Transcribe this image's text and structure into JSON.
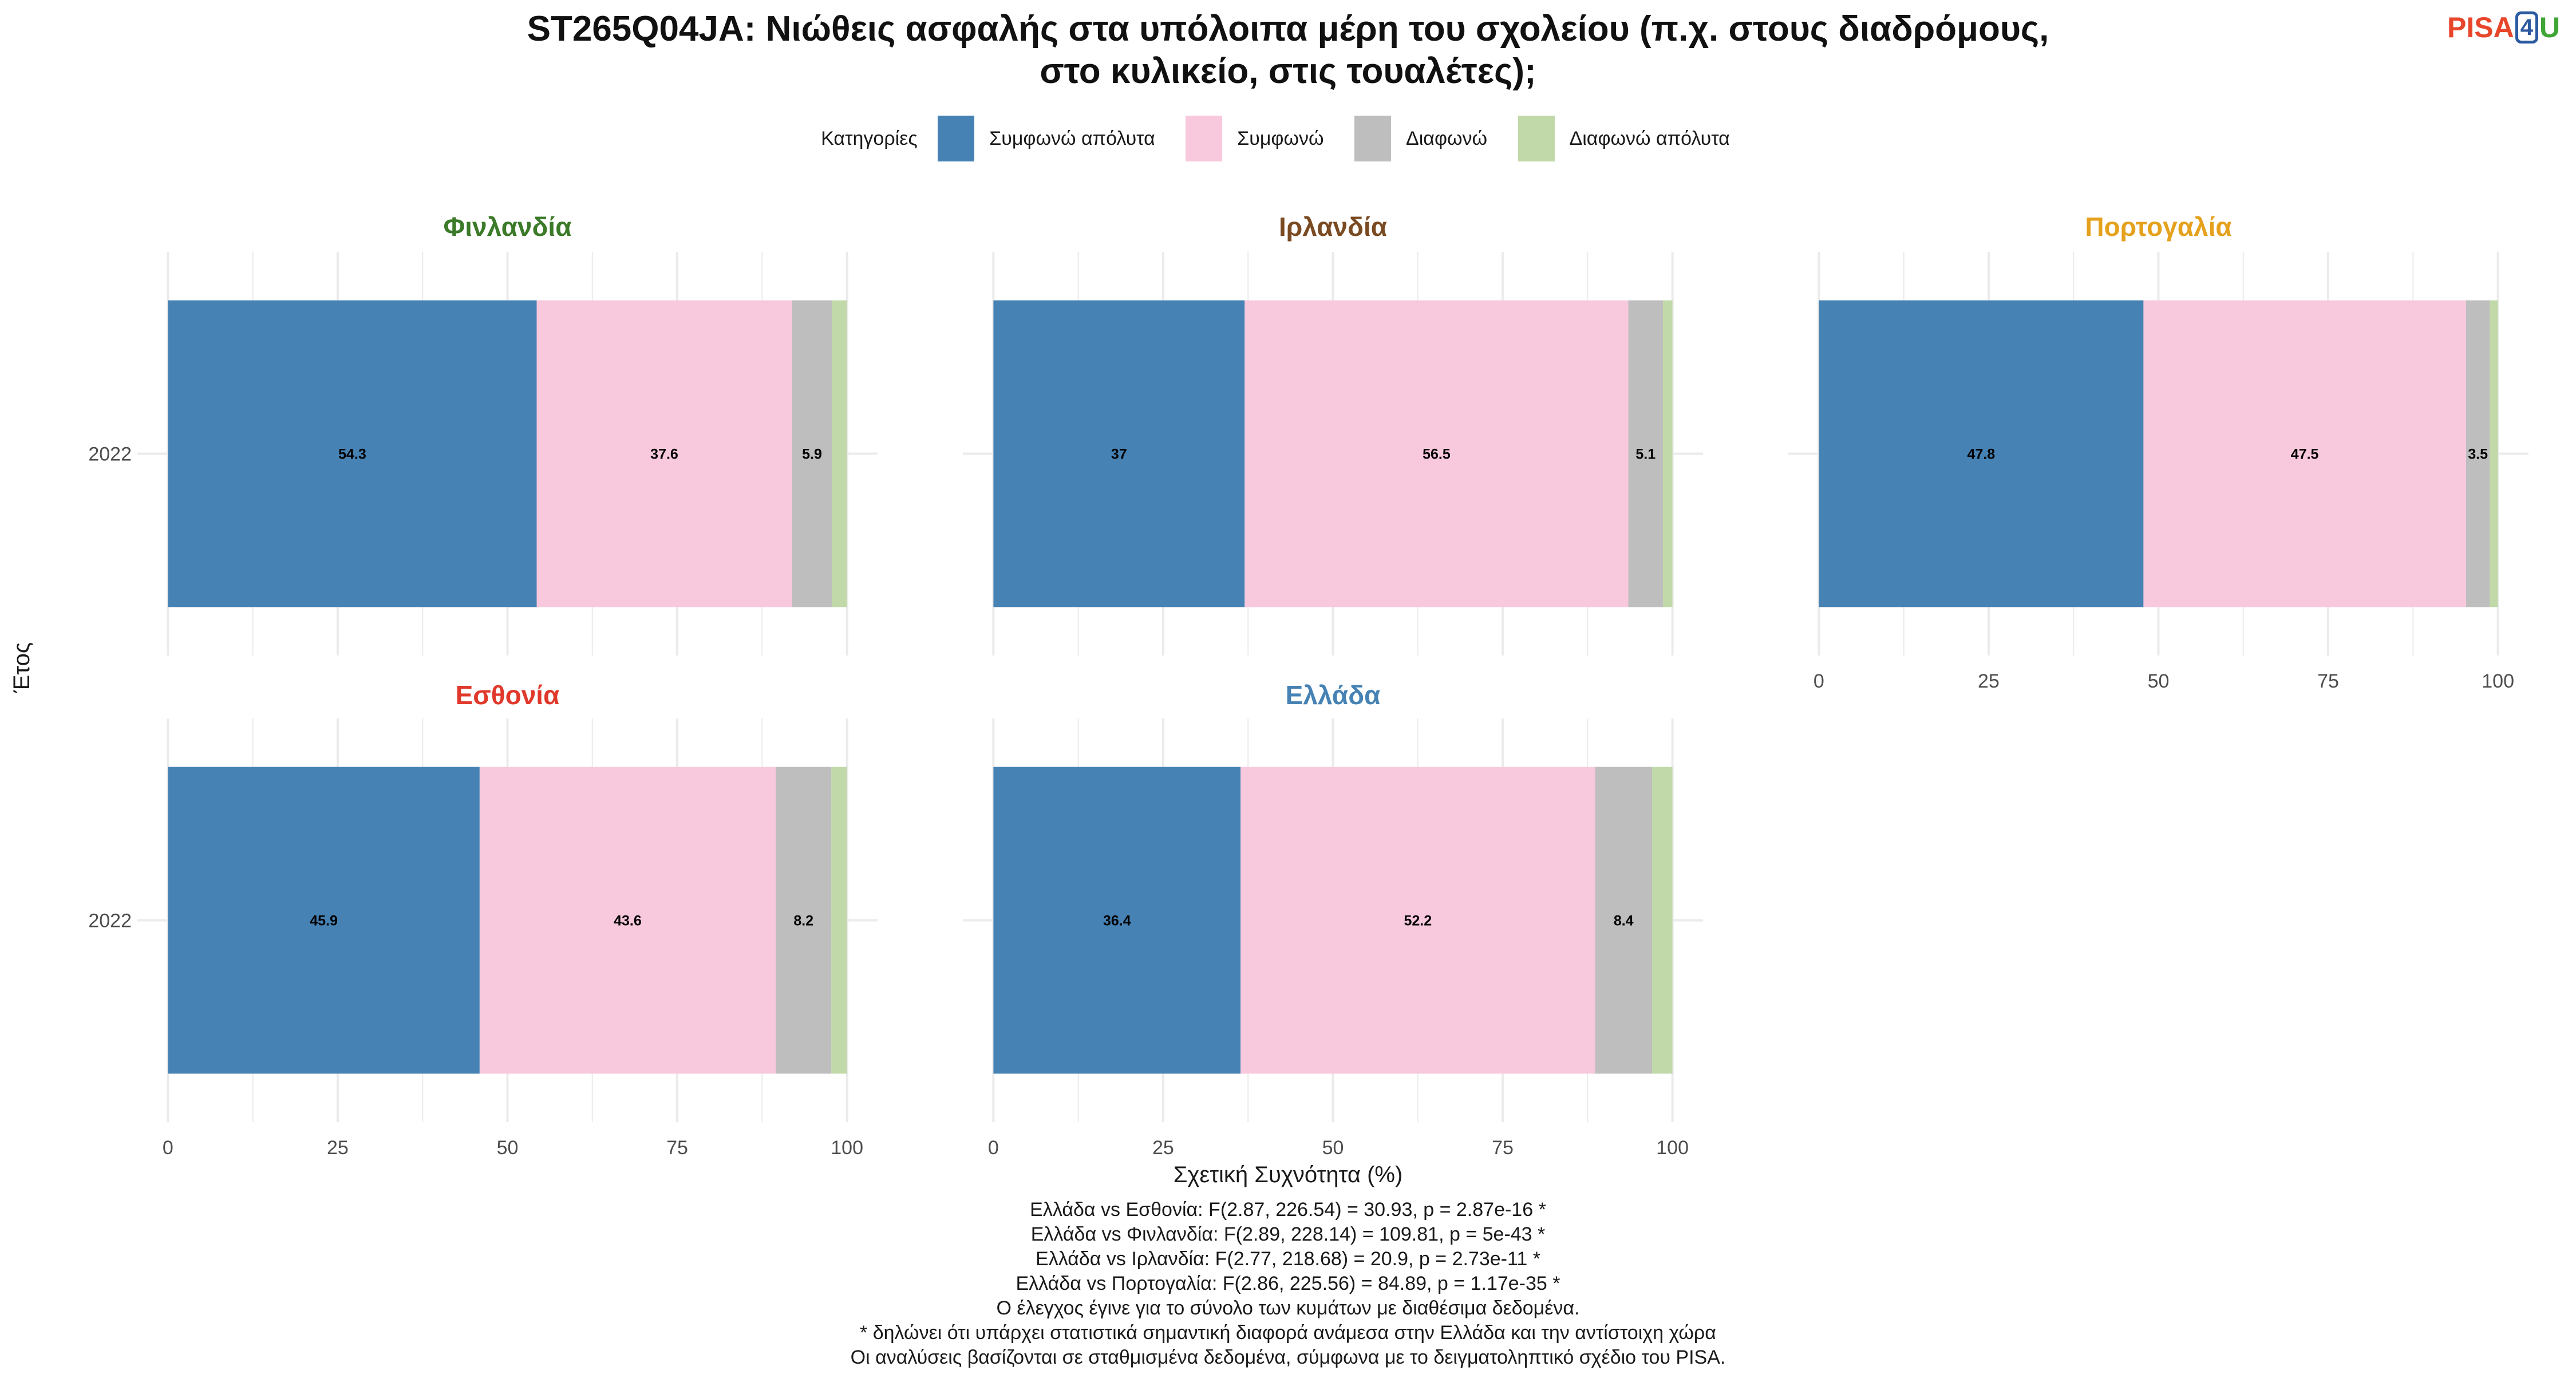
{
  "title": "ST265Q04JA: Νιώθεις ασφαλής στα υπόλοιπα μέρη του σχολείου (π.χ. στους διαδρόμους, στο κυλικείο, στις τουαλέτες);",
  "logo": {
    "part1": "PISA",
    "part2": "4",
    "part3": "U"
  },
  "legend_title": "Κατηγορίες",
  "chart_data": {
    "type": "bar",
    "orientation": "horizontal",
    "stacked": true,
    "xlabel": "Σχετική Συχνότητα (%)",
    "ylabel": "Έτος",
    "xlim": [
      0,
      100
    ],
    "x_ticks": [
      "0",
      "25",
      "50",
      "75",
      "100"
    ],
    "legend_position": "top",
    "categories": [
      {
        "name": "Συμφωνώ απόλυτα",
        "color": "#4682b4"
      },
      {
        "name": "Συμφωνώ",
        "color": "#f8c8dc"
      },
      {
        "name": "Διαφωνώ",
        "color": "#bebebe"
      },
      {
        "name": "Διαφωνώ απόλυτα",
        "color": "#c1d9a8"
      }
    ],
    "panels": [
      {
        "country": "Φινλανδία",
        "color": "#3b7a28",
        "year": "2022",
        "values": [
          54.3,
          37.6,
          5.9,
          2.2
        ],
        "labels": [
          "54.3",
          "37.6",
          "5.9",
          ""
        ]
      },
      {
        "country": "Ιρλανδία",
        "color": "#7a4a22",
        "year": "2022",
        "values": [
          37,
          56.5,
          5.1,
          1.4
        ],
        "labels": [
          "37",
          "56.5",
          "5.1",
          ""
        ]
      },
      {
        "country": "Πορτογαλία",
        "color": "#e5a11c",
        "year": "2022",
        "values": [
          47.8,
          47.5,
          3.5,
          1.2
        ],
        "labels": [
          "47.8",
          "47.5",
          "3.5",
          ""
        ]
      },
      {
        "country": "Εσθονία",
        "color": "#e0392b",
        "year": "2022",
        "values": [
          45.9,
          43.6,
          8.2,
          2.3
        ],
        "labels": [
          "45.9",
          "43.6",
          "8.2",
          ""
        ]
      },
      {
        "country": "Ελλάδα",
        "color": "#4682b4",
        "year": "2022",
        "values": [
          36.4,
          52.2,
          8.4,
          3.0
        ],
        "labels": [
          "36.4",
          "52.2",
          "8.4",
          ""
        ]
      }
    ]
  },
  "caption": [
    "Ελλάδα vs Εσθονία: F(2.87, 226.54) = 30.93, p = 2.87e-16 *",
    "Ελλάδα vs Φινλανδία: F(2.89, 228.14) = 109.81, p = 5e-43 *",
    "Ελλάδα vs Ιρλανδία: F(2.77, 218.68) = 20.9, p = 2.73e-11 *",
    "Ελλάδα vs Πορτογαλία: F(2.86, 225.56) = 84.89, p = 1.17e-35 *",
    "Ο έλεγχος έγινε για το σύνολο των κυμάτων με διαθέσιμα δεδομένα.",
    "* δηλώνει ότι υπάρχει στατιστικά σημαντική διαφορά ανάμεσα στην Ελλάδα και την αντίστοιχη χώρα",
    "Οι αναλύσεις βασίζονται σε σταθμισμένα δεδομένα, σύμφωνα με το δειγματοληπτικό σχέδιο του PISA."
  ]
}
